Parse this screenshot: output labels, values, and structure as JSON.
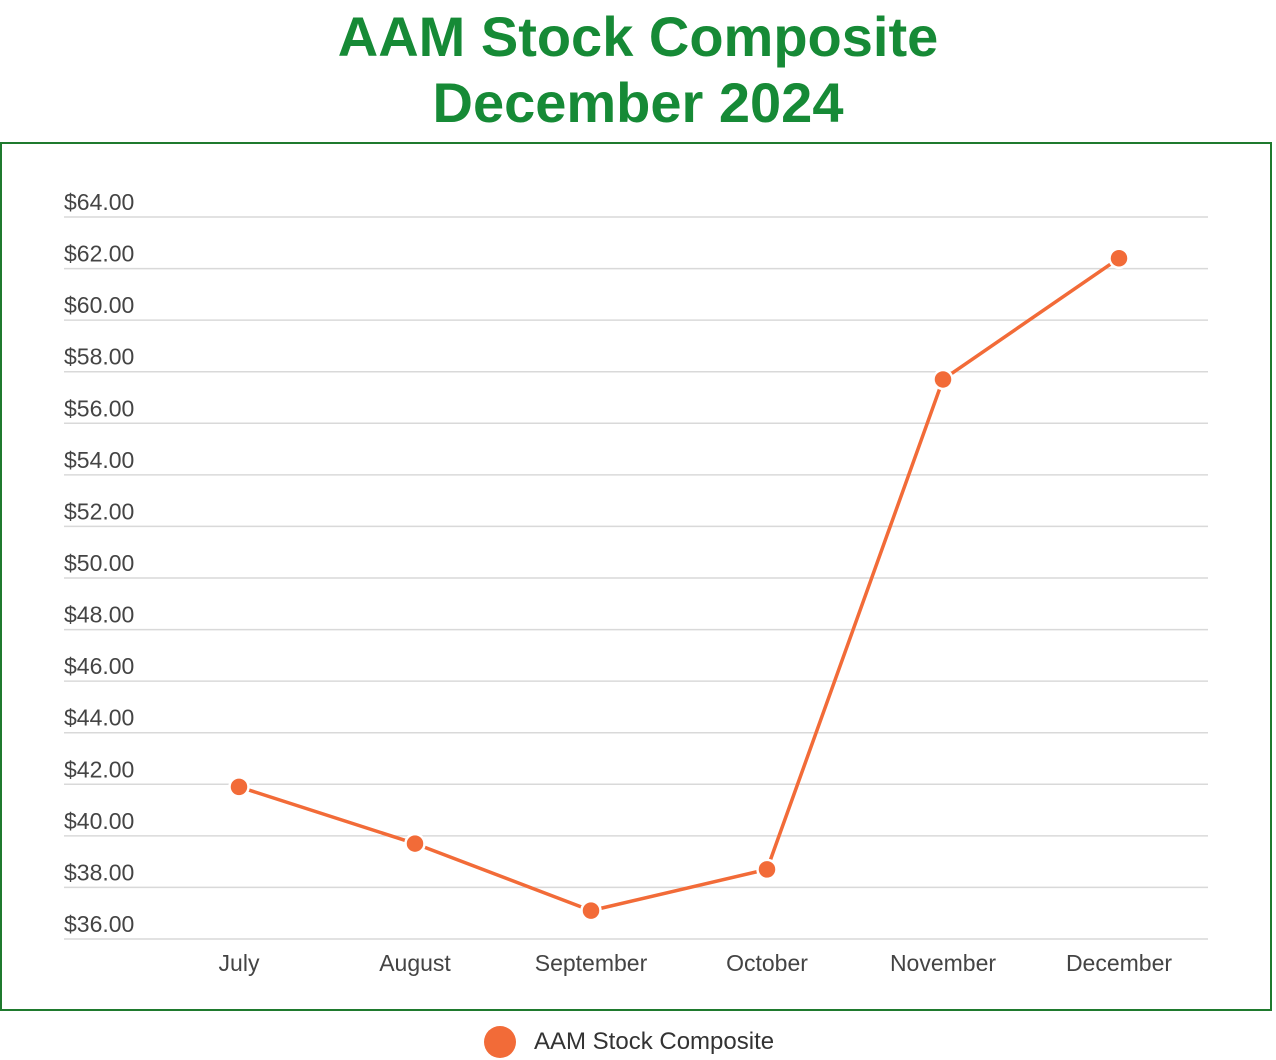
{
  "title": {
    "line1": "AAM Stock Composite",
    "line2": "December 2024"
  },
  "colors": {
    "title": "#168a36",
    "frame": "#1f7a2e",
    "series": "#f26b38",
    "grid": "#d9d9d9",
    "tick_text": "#444444"
  },
  "chart_data": {
    "type": "line",
    "categories": [
      "July",
      "August",
      "September",
      "October",
      "November",
      "December"
    ],
    "series": [
      {
        "name": "AAM Stock Composite",
        "values": [
          41.9,
          39.7,
          37.1,
          38.7,
          57.7,
          62.4
        ]
      }
    ],
    "y_ticks": [
      "$36.00",
      "$38.00",
      "$40.00",
      "$42.00",
      "$44.00",
      "$46.00",
      "$48.00",
      "$50.00",
      "$52.00",
      "$54.00",
      "$56.00",
      "$58.00",
      "$60.00",
      "$62.00",
      "$64.00"
    ],
    "ylim": [
      36,
      64
    ],
    "grid": true,
    "legend_position": "bottom"
  },
  "legend": {
    "label": "AAM Stock Composite"
  }
}
